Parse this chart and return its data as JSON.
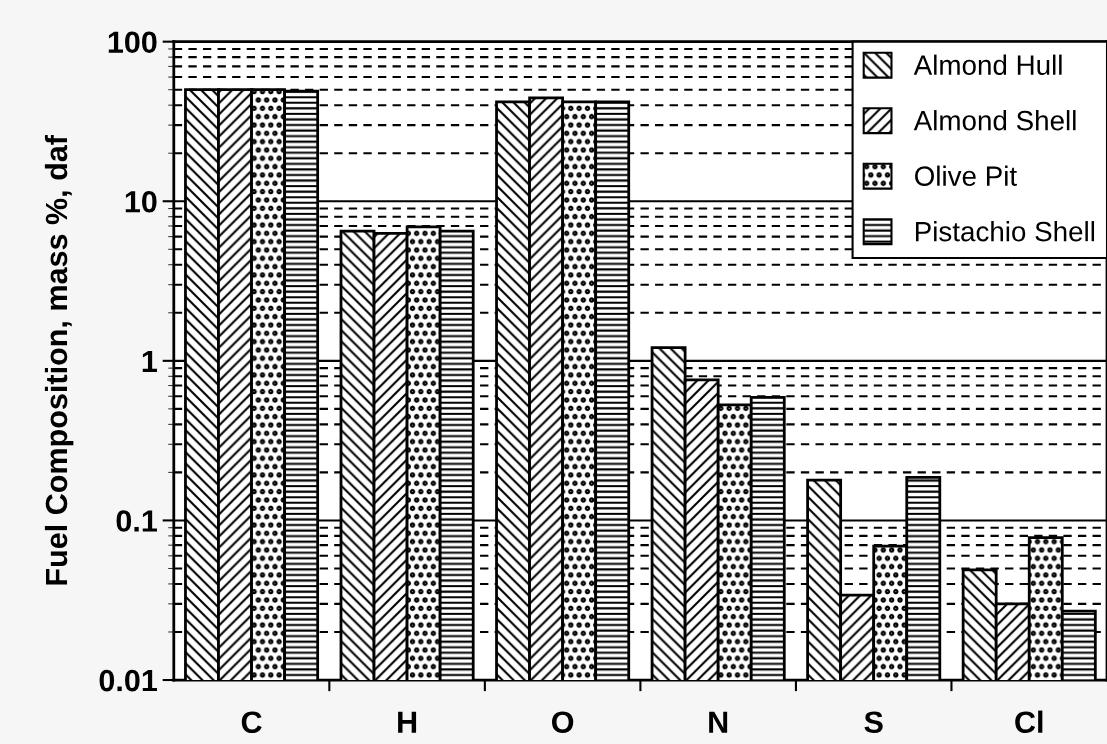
{
  "chart_data": {
    "type": "bar",
    "ylabel": "Fuel Composition, mass %, daf",
    "categories": [
      "C",
      "H",
      "O",
      "N",
      "S",
      "Cl"
    ],
    "series": [
      {
        "name": "Almond Hull",
        "color": "#000000",
        "values": [
          50,
          6.5,
          42,
          1.21,
          0.179,
          0.049
        ]
      },
      {
        "name": "Almond Shell",
        "color": "#000000",
        "values": [
          50,
          6.3,
          44.5,
          0.76,
          0.034,
          0.03
        ]
      },
      {
        "name": "Olive Pit",
        "color": "#000000",
        "values": [
          50,
          6.9,
          42,
          0.53,
          0.069,
          0.078
        ]
      },
      {
        "name": "Pistachio Shell",
        "color": "#000000",
        "values": [
          49,
          6.5,
          42,
          0.59,
          0.186,
          0.027
        ]
      }
    ],
    "log": true,
    "ylim": [
      0.01,
      100
    ],
    "yticks": [
      0.01,
      0.1,
      1,
      10,
      100
    ],
    "grid": true,
    "legend": "top right"
  }
}
